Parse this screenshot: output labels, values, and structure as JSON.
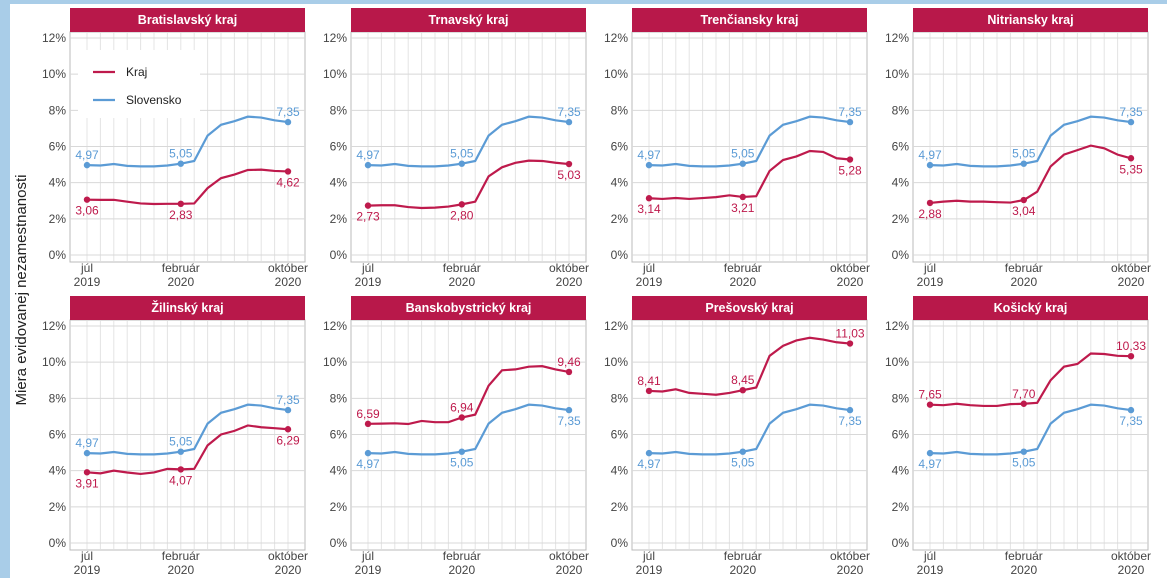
{
  "chart_data": [
    {
      "type": "line",
      "title": "Bratislavský kraj",
      "ylabel": "Miera evidovanej nezamestnanosti",
      "legend": "top-left",
      "categories": [
        "júl\n2019",
        null,
        null,
        null,
        null,
        null,
        null,
        "február\n2020",
        null,
        null,
        null,
        null,
        null,
        null,
        null,
        "október\n2020"
      ],
      "ylim": [
        0,
        12
      ],
      "yticks": [
        {
          "value": 0,
          "label": "0%"
        },
        {
          "value": 2,
          "label": "2%"
        },
        {
          "value": 4,
          "label": "4%"
        },
        {
          "value": 6,
          "label": "6%"
        },
        {
          "value": 8,
          "label": "8%"
        },
        {
          "value": 10,
          "label": "10%"
        },
        {
          "value": 12,
          "label": "12%"
        }
      ],
      "series": [
        {
          "name": "Kraj",
          "color": "#be1a4c",
          "values": [
            3.06,
            3.05,
            3.05,
            2.95,
            2.85,
            2.82,
            2.83,
            2.83,
            2.85,
            3.7,
            4.25,
            4.45,
            4.7,
            4.72,
            4.65,
            4.62
          ],
          "value_labels": [
            "3,06",
            null,
            null,
            null,
            null,
            null,
            null,
            "2,83",
            null,
            null,
            null,
            null,
            null,
            null,
            null,
            "4,62"
          ]
        },
        {
          "name": "Slovensko",
          "color": "#5b9bd5",
          "values": [
            4.97,
            4.95,
            5.03,
            4.93,
            4.9,
            4.9,
            4.95,
            5.05,
            5.2,
            6.6,
            7.2,
            7.4,
            7.65,
            7.6,
            7.45,
            7.35
          ],
          "value_labels": [
            "4,97",
            null,
            null,
            null,
            null,
            null,
            null,
            "5,05",
            null,
            null,
            null,
            null,
            null,
            null,
            null,
            "7,35"
          ]
        }
      ]
    },
    {
      "type": "line",
      "title": "Trnavský kraj",
      "categories": [
        "júl\n2019",
        null,
        null,
        null,
        null,
        null,
        null,
        "február\n2020",
        null,
        null,
        null,
        null,
        null,
        null,
        null,
        "október\n2020"
      ],
      "ylim": [
        0,
        12
      ],
      "yticks": [
        {
          "value": 0,
          "label": "0%"
        },
        {
          "value": 2,
          "label": "2%"
        },
        {
          "value": 4,
          "label": "4%"
        },
        {
          "value": 6,
          "label": "6%"
        },
        {
          "value": 8,
          "label": "8%"
        },
        {
          "value": 10,
          "label": "10%"
        },
        {
          "value": 12,
          "label": "12%"
        }
      ],
      "series": [
        {
          "name": "Kraj",
          "color": "#be1a4c",
          "values": [
            2.73,
            2.75,
            2.75,
            2.65,
            2.6,
            2.62,
            2.68,
            2.8,
            2.95,
            4.35,
            4.85,
            5.1,
            5.22,
            5.2,
            5.1,
            5.03
          ],
          "value_labels": [
            "2,73",
            null,
            null,
            null,
            null,
            null,
            null,
            "2,80",
            null,
            null,
            null,
            null,
            null,
            null,
            null,
            "5,03"
          ]
        },
        {
          "name": "Slovensko",
          "color": "#5b9bd5",
          "values": [
            4.97,
            4.95,
            5.03,
            4.93,
            4.9,
            4.9,
            4.95,
            5.05,
            5.2,
            6.6,
            7.2,
            7.4,
            7.65,
            7.6,
            7.45,
            7.35
          ],
          "value_labels": [
            "4,97",
            null,
            null,
            null,
            null,
            null,
            null,
            "5,05",
            null,
            null,
            null,
            null,
            null,
            null,
            null,
            "7,35"
          ]
        }
      ]
    },
    {
      "type": "line",
      "title": "Trenčiansky kraj",
      "categories": [
        "júl\n2019",
        null,
        null,
        null,
        null,
        null,
        null,
        "február\n2020",
        null,
        null,
        null,
        null,
        null,
        null,
        null,
        "október\n2020"
      ],
      "ylim": [
        0,
        12
      ],
      "yticks": [
        {
          "value": 0,
          "label": "0%"
        },
        {
          "value": 2,
          "label": "2%"
        },
        {
          "value": 4,
          "label": "4%"
        },
        {
          "value": 6,
          "label": "6%"
        },
        {
          "value": 8,
          "label": "8%"
        },
        {
          "value": 10,
          "label": "10%"
        },
        {
          "value": 12,
          "label": "12%"
        }
      ],
      "series": [
        {
          "name": "Kraj",
          "color": "#be1a4c",
          "values": [
            3.14,
            3.1,
            3.15,
            3.1,
            3.15,
            3.2,
            3.3,
            3.21,
            3.25,
            4.65,
            5.25,
            5.45,
            5.75,
            5.7,
            5.35,
            5.28
          ],
          "value_labels": [
            "3,14",
            null,
            null,
            null,
            null,
            null,
            null,
            "3,21",
            null,
            null,
            null,
            null,
            null,
            null,
            null,
            "5,28"
          ]
        },
        {
          "name": "Slovensko",
          "color": "#5b9bd5",
          "values": [
            4.97,
            4.95,
            5.03,
            4.93,
            4.9,
            4.9,
            4.95,
            5.05,
            5.2,
            6.6,
            7.2,
            7.4,
            7.65,
            7.6,
            7.45,
            7.35
          ],
          "value_labels": [
            "4,97",
            null,
            null,
            null,
            null,
            null,
            null,
            "5,05",
            null,
            null,
            null,
            null,
            null,
            null,
            null,
            "7,35"
          ]
        }
      ]
    },
    {
      "type": "line",
      "title": "Nitriansky kraj",
      "categories": [
        "júl\n2019",
        null,
        null,
        null,
        null,
        null,
        null,
        "február\n2020",
        null,
        null,
        null,
        null,
        null,
        null,
        null,
        "október\n2020"
      ],
      "ylim": [
        0,
        12
      ],
      "yticks": [
        {
          "value": 0,
          "label": "0%"
        },
        {
          "value": 2,
          "label": "2%"
        },
        {
          "value": 4,
          "label": "4%"
        },
        {
          "value": 6,
          "label": "6%"
        },
        {
          "value": 8,
          "label": "8%"
        },
        {
          "value": 10,
          "label": "10%"
        },
        {
          "value": 12,
          "label": "12%"
        }
      ],
      "series": [
        {
          "name": "Kraj",
          "color": "#be1a4c",
          "values": [
            2.88,
            2.95,
            3.0,
            2.95,
            2.95,
            2.92,
            2.9,
            3.04,
            3.5,
            4.9,
            5.55,
            5.8,
            6.05,
            5.9,
            5.55,
            5.35
          ],
          "value_labels": [
            "2,88",
            null,
            null,
            null,
            null,
            null,
            null,
            "3,04",
            null,
            null,
            null,
            null,
            null,
            null,
            null,
            "5,35"
          ]
        },
        {
          "name": "Slovensko",
          "color": "#5b9bd5",
          "values": [
            4.97,
            4.95,
            5.03,
            4.93,
            4.9,
            4.9,
            4.95,
            5.05,
            5.2,
            6.6,
            7.2,
            7.4,
            7.65,
            7.6,
            7.45,
            7.35
          ],
          "value_labels": [
            "4,97",
            null,
            null,
            null,
            null,
            null,
            null,
            "5,05",
            null,
            null,
            null,
            null,
            null,
            null,
            null,
            "7,35"
          ]
        }
      ]
    },
    {
      "type": "line",
      "title": "Žilinský kraj",
      "categories": [
        "júl\n2019",
        null,
        null,
        null,
        null,
        null,
        null,
        "február\n2020",
        null,
        null,
        null,
        null,
        null,
        null,
        null,
        "október\n2020"
      ],
      "ylim": [
        0,
        12
      ],
      "yticks": [
        {
          "value": 0,
          "label": "0%"
        },
        {
          "value": 2,
          "label": "2%"
        },
        {
          "value": 4,
          "label": "4%"
        },
        {
          "value": 6,
          "label": "6%"
        },
        {
          "value": 8,
          "label": "8%"
        },
        {
          "value": 10,
          "label": "10%"
        },
        {
          "value": 12,
          "label": "12%"
        }
      ],
      "series": [
        {
          "name": "Kraj",
          "color": "#be1a4c",
          "values": [
            3.91,
            3.85,
            4.0,
            3.9,
            3.82,
            3.9,
            4.1,
            4.07,
            4.1,
            5.4,
            6.0,
            6.2,
            6.5,
            6.4,
            6.35,
            6.29
          ],
          "value_labels": [
            "3,91",
            null,
            null,
            null,
            null,
            null,
            null,
            "4,07",
            null,
            null,
            null,
            null,
            null,
            null,
            null,
            "6,29"
          ]
        },
        {
          "name": "Slovensko",
          "color": "#5b9bd5",
          "values": [
            4.97,
            4.95,
            5.03,
            4.93,
            4.9,
            4.9,
            4.95,
            5.05,
            5.2,
            6.6,
            7.2,
            7.4,
            7.65,
            7.6,
            7.45,
            7.35
          ],
          "value_labels": [
            "4,97",
            null,
            null,
            null,
            null,
            null,
            null,
            "5,05",
            null,
            null,
            null,
            null,
            null,
            null,
            null,
            "7,35"
          ]
        }
      ]
    },
    {
      "type": "line",
      "title": "Banskobystrický kraj",
      "categories": [
        "júl\n2019",
        null,
        null,
        null,
        null,
        null,
        null,
        "február\n2020",
        null,
        null,
        null,
        null,
        null,
        null,
        null,
        "október\n2020"
      ],
      "ylim": [
        0,
        12
      ],
      "yticks": [
        {
          "value": 0,
          "label": "0%"
        },
        {
          "value": 2,
          "label": "2%"
        },
        {
          "value": 4,
          "label": "4%"
        },
        {
          "value": 6,
          "label": "6%"
        },
        {
          "value": 8,
          "label": "8%"
        },
        {
          "value": 10,
          "label": "10%"
        },
        {
          "value": 12,
          "label": "12%"
        }
      ],
      "series": [
        {
          "name": "Kraj",
          "color": "#be1a4c",
          "values": [
            6.59,
            6.6,
            6.62,
            6.58,
            6.75,
            6.68,
            6.68,
            6.94,
            7.1,
            8.7,
            9.55,
            9.6,
            9.75,
            9.78,
            9.6,
            9.46
          ],
          "value_labels": [
            "6,59",
            null,
            null,
            null,
            null,
            null,
            null,
            "6,94",
            null,
            null,
            null,
            null,
            null,
            null,
            null,
            "9,46"
          ]
        },
        {
          "name": "Slovensko",
          "color": "#5b9bd5",
          "values": [
            4.97,
            4.95,
            5.03,
            4.93,
            4.9,
            4.9,
            4.95,
            5.05,
            5.2,
            6.6,
            7.2,
            7.4,
            7.65,
            7.6,
            7.45,
            7.35
          ],
          "value_labels": [
            "4,97",
            null,
            null,
            null,
            null,
            null,
            null,
            "5,05",
            null,
            null,
            null,
            null,
            null,
            null,
            null,
            "7,35"
          ]
        }
      ]
    },
    {
      "type": "line",
      "title": "Prešovský kraj",
      "categories": [
        "júl\n2019",
        null,
        null,
        null,
        null,
        null,
        null,
        "február\n2020",
        null,
        null,
        null,
        null,
        null,
        null,
        null,
        "október\n2020"
      ],
      "ylim": [
        0,
        12
      ],
      "yticks": [
        {
          "value": 0,
          "label": "0%"
        },
        {
          "value": 2,
          "label": "2%"
        },
        {
          "value": 4,
          "label": "4%"
        },
        {
          "value": 6,
          "label": "6%"
        },
        {
          "value": 8,
          "label": "8%"
        },
        {
          "value": 10,
          "label": "10%"
        },
        {
          "value": 12,
          "label": "12%"
        }
      ],
      "series": [
        {
          "name": "Kraj",
          "color": "#be1a4c",
          "values": [
            8.41,
            8.38,
            8.5,
            8.3,
            8.25,
            8.2,
            8.3,
            8.45,
            8.6,
            10.35,
            10.9,
            11.2,
            11.35,
            11.25,
            11.1,
            11.03
          ],
          "value_labels": [
            "8,41",
            null,
            null,
            null,
            null,
            null,
            null,
            "8,45",
            null,
            null,
            null,
            null,
            null,
            null,
            null,
            "11,03"
          ]
        },
        {
          "name": "Slovensko",
          "color": "#5b9bd5",
          "values": [
            4.97,
            4.95,
            5.03,
            4.93,
            4.9,
            4.9,
            4.95,
            5.05,
            5.2,
            6.6,
            7.2,
            7.4,
            7.65,
            7.6,
            7.45,
            7.35
          ],
          "value_labels": [
            "4,97",
            null,
            null,
            null,
            null,
            null,
            null,
            "5,05",
            null,
            null,
            null,
            null,
            null,
            null,
            null,
            "7,35"
          ]
        }
      ]
    },
    {
      "type": "line",
      "title": "Košický kraj",
      "categories": [
        "júl\n2019",
        null,
        null,
        null,
        null,
        null,
        null,
        "február\n2020",
        null,
        null,
        null,
        null,
        null,
        null,
        null,
        "október\n2020"
      ],
      "ylim": [
        0,
        12
      ],
      "yticks": [
        {
          "value": 0,
          "label": "0%"
        },
        {
          "value": 2,
          "label": "2%"
        },
        {
          "value": 4,
          "label": "4%"
        },
        {
          "value": 6,
          "label": "6%"
        },
        {
          "value": 8,
          "label": "8%"
        },
        {
          "value": 10,
          "label": "10%"
        },
        {
          "value": 12,
          "label": "12%"
        }
      ],
      "series": [
        {
          "name": "Kraj",
          "color": "#be1a4c",
          "values": [
            7.65,
            7.62,
            7.7,
            7.62,
            7.58,
            7.58,
            7.68,
            7.7,
            7.75,
            9.0,
            9.75,
            9.9,
            10.48,
            10.45,
            10.35,
            10.33
          ],
          "value_labels": [
            "7,65",
            null,
            null,
            null,
            null,
            null,
            null,
            "7,70",
            null,
            null,
            null,
            null,
            null,
            null,
            null,
            "10,33"
          ]
        },
        {
          "name": "Slovensko",
          "color": "#5b9bd5",
          "values": [
            4.97,
            4.95,
            5.03,
            4.93,
            4.9,
            4.9,
            4.95,
            5.05,
            5.2,
            6.6,
            7.2,
            7.4,
            7.65,
            7.6,
            7.45,
            7.35
          ],
          "value_labels": [
            "4,97",
            null,
            null,
            null,
            null,
            null,
            null,
            "5,05",
            null,
            null,
            null,
            null,
            null,
            null,
            null,
            "7,35"
          ]
        }
      ]
    }
  ]
}
